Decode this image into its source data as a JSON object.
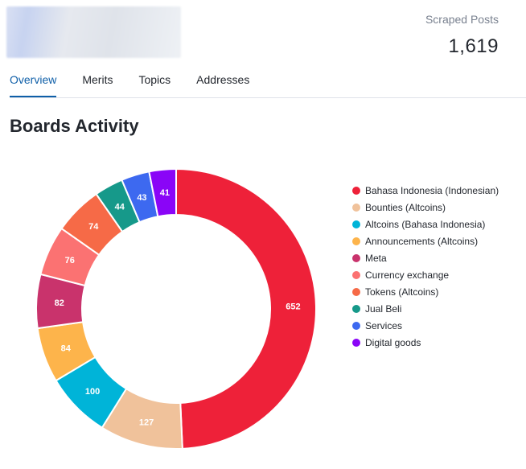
{
  "header": {
    "stat_label": "Scraped Posts",
    "stat_value": "1,619"
  },
  "tabs": [
    {
      "label": "Overview",
      "active": true
    },
    {
      "label": "Merits",
      "active": false
    },
    {
      "label": "Topics",
      "active": false
    },
    {
      "label": "Addresses",
      "active": false
    }
  ],
  "section_title": "Boards Activity",
  "chart_data": {
    "type": "pie",
    "donut": true,
    "legend_position": "right",
    "categories": [
      "Bahasa Indonesia (Indonesian)",
      "Bounties (Altcoins)",
      "Altcoins (Bahasa Indonesia)",
      "Announcements (Altcoins)",
      "Meta",
      "Currency exchange",
      "Tokens (Altcoins)",
      "Jual Beli",
      "Services",
      "Digital goods"
    ],
    "values": [
      652,
      127,
      100,
      84,
      82,
      76,
      74,
      44,
      43,
      41
    ],
    "colors": [
      "#ee2139",
      "#f0c29b",
      "#00b4d8",
      "#fdb44b",
      "#c9336c",
      "#fb7272",
      "#f66a47",
      "#16998a",
      "#3d69f0",
      "#8a05f7"
    ]
  }
}
